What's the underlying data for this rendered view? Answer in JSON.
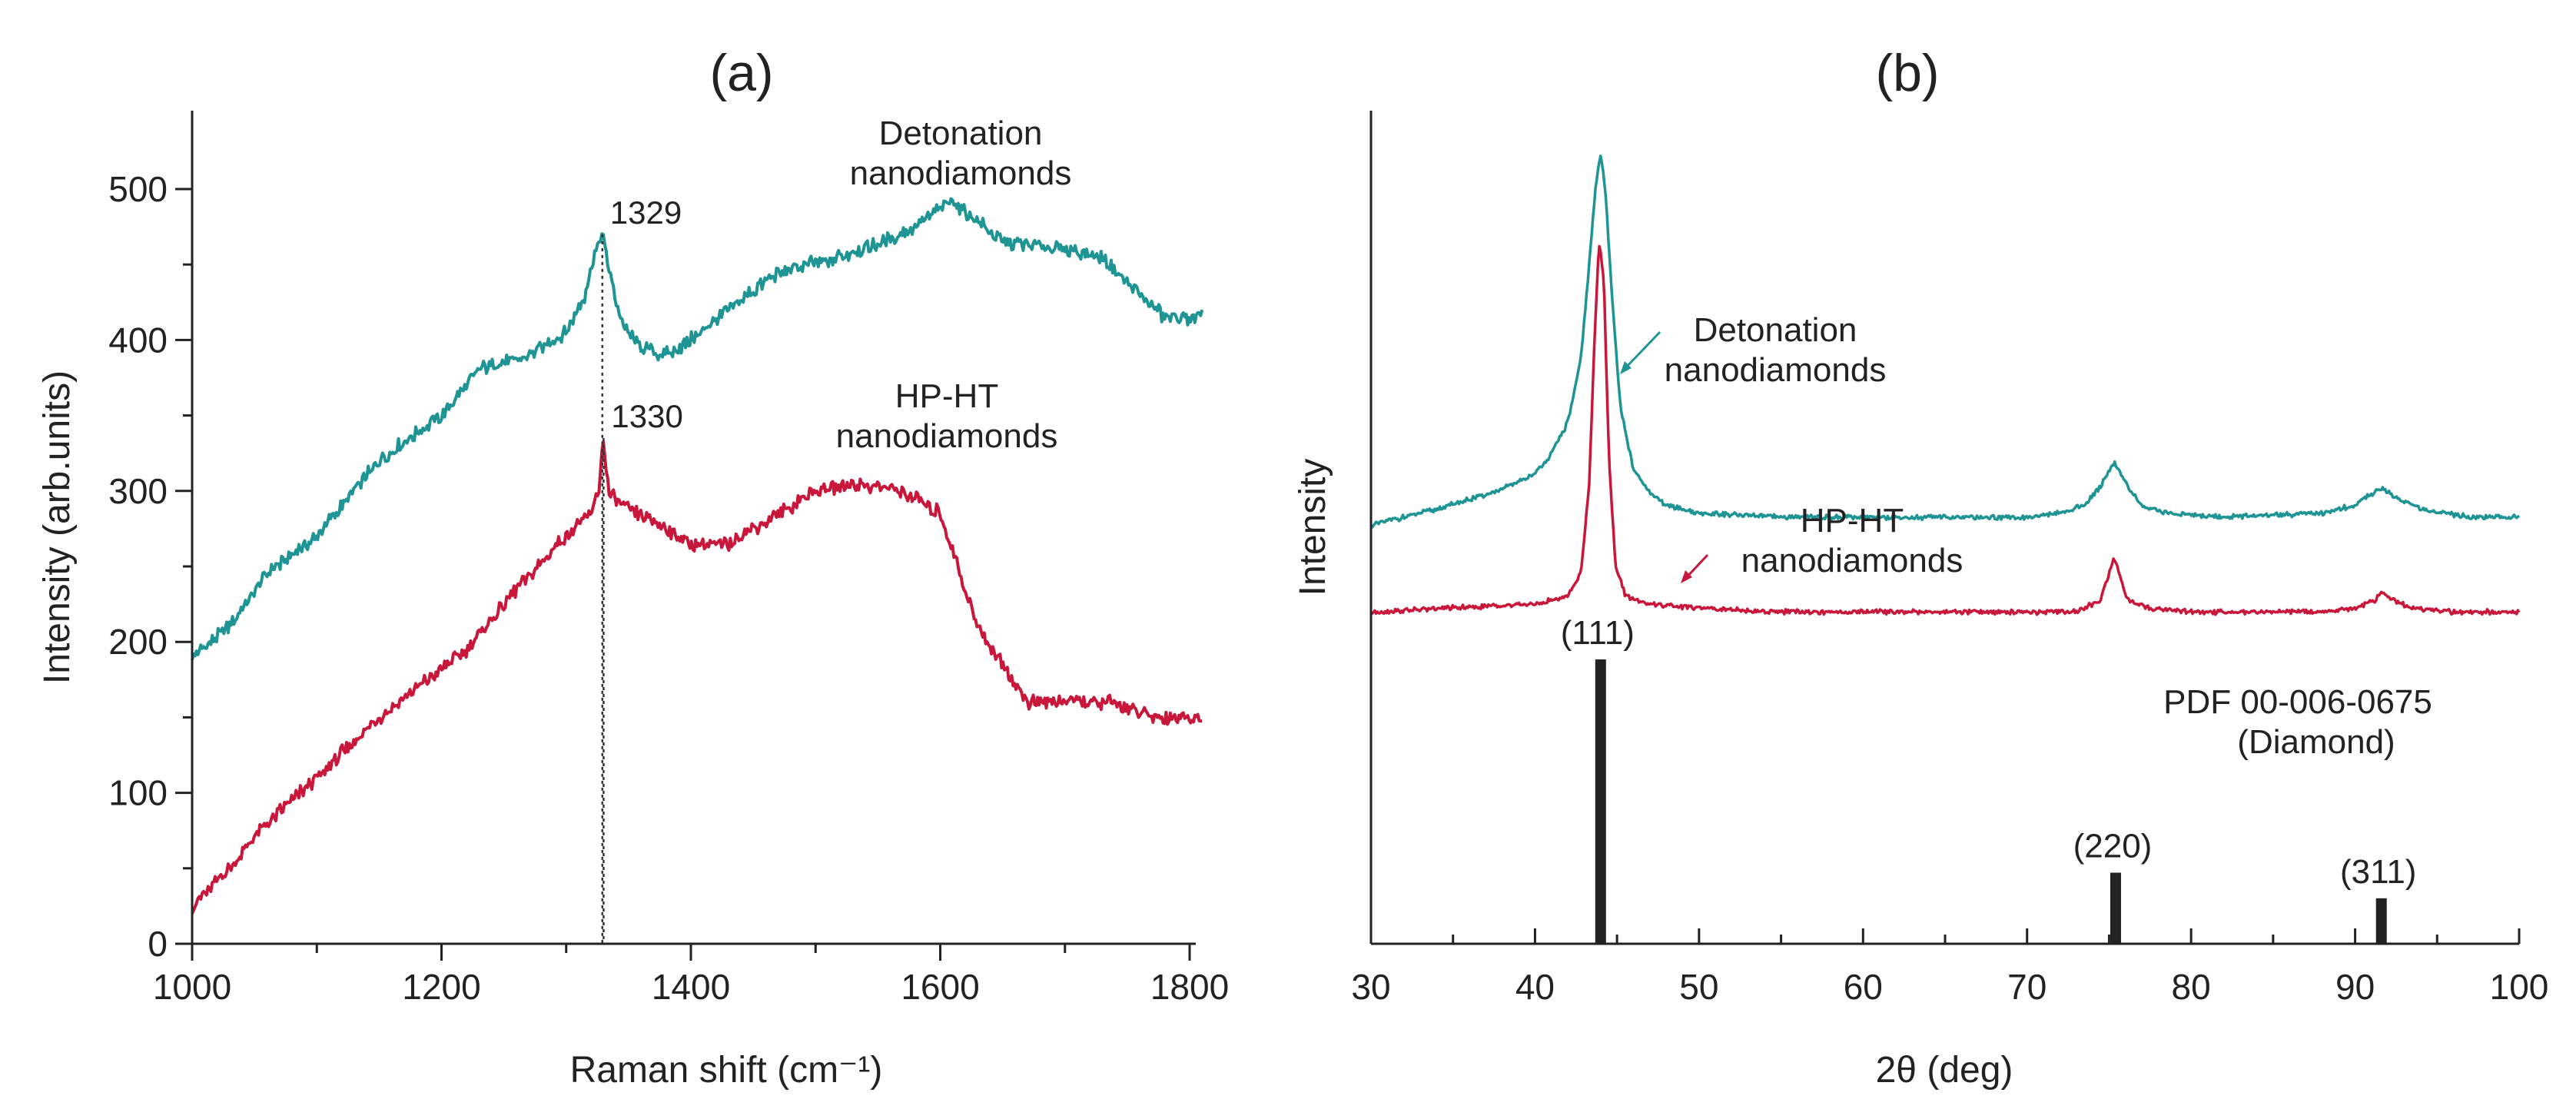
{
  "chart_data": [
    {
      "panel_id": "a",
      "type": "line",
      "title": "(a)",
      "xlabel": "Raman shift (cm⁻¹)",
      "ylabel": "Intensity (arb.units)",
      "xlim": [
        1000,
        1810
      ],
      "ylim": [
        0,
        550
      ],
      "x_ticks": [
        1000,
        1200,
        1400,
        1600,
        1800
      ],
      "y_ticks": [
        0,
        100,
        200,
        300,
        400,
        500
      ],
      "grid": false,
      "series": [
        {
          "name": "Detonation nanodiamonds",
          "label_lines": [
            "Detonation",
            "nanodiamonds"
          ],
          "color": "#1e9494",
          "peak_label": "1329",
          "peak_x": 1329,
          "x": [
            1000,
            1030,
            1060,
            1100,
            1150,
            1200,
            1230,
            1270,
            1300,
            1315,
            1322,
            1329,
            1336,
            1345,
            1360,
            1380,
            1400,
            1430,
            1470,
            1520,
            1570,
            1610,
            1650,
            1700,
            1730,
            1760,
            1780,
            1810
          ],
          "values": [
            190,
            210,
            245,
            270,
            320,
            350,
            380,
            390,
            405,
            430,
            455,
            470,
            440,
            410,
            395,
            390,
            400,
            420,
            445,
            455,
            470,
            492,
            465,
            460,
            455,
            430,
            415,
            415
          ]
        },
        {
          "name": "HP-HT nanodiamonds",
          "label_lines": [
            "HP-HT",
            "nanodiamonds"
          ],
          "color": "#c8173a",
          "peak_label": "1330",
          "peak_x": 1330,
          "x": [
            1000,
            1030,
            1060,
            1100,
            1150,
            1180,
            1220,
            1260,
            1300,
            1320,
            1326,
            1330,
            1334,
            1345,
            1370,
            1400,
            1430,
            1470,
            1500,
            1530,
            1570,
            1600,
            1630,
            1670,
            1700,
            1740,
            1770,
            1810
          ],
          "values": [
            25,
            50,
            80,
            110,
            150,
            170,
            195,
            235,
            270,
            285,
            300,
            335,
            300,
            290,
            280,
            265,
            265,
            285,
            300,
            305,
            300,
            285,
            210,
            160,
            160,
            160,
            150,
            150
          ]
        }
      ]
    },
    {
      "panel_id": "b",
      "type": "line",
      "title": "(b)",
      "xlabel": "2θ (deg)",
      "ylabel": "Intensity",
      "xlim": [
        30,
        100
      ],
      "ylim": [
        0,
        100
      ],
      "x_ticks": [
        30,
        40,
        50,
        60,
        70,
        80,
        90,
        100
      ],
      "grid": false,
      "series": [
        {
          "name": "Detonation nanodiamonds",
          "label_lines": [
            "Detonation",
            "nanodiamonds"
          ],
          "color": "#1e9494",
          "x": [
            30,
            34,
            38,
            40,
            41,
            42,
            42.8,
            43.3,
            43.7,
            44.0,
            44.3,
            44.7,
            45.2,
            46,
            47,
            48,
            50,
            55,
            60,
            65,
            70,
            72,
            73.5,
            74.5,
            75.3,
            76.1,
            77,
            78.5,
            82,
            88,
            90,
            91,
            91.7,
            92.5,
            94,
            97,
            100
          ],
          "values": [
            53,
            55,
            57.5,
            59.5,
            62,
            66,
            74,
            86,
            96,
            100,
            95,
            82,
            68,
            60,
            57,
            55.5,
            54.5,
            54,
            54,
            54,
            54,
            54.5,
            55.5,
            58,
            61,
            58,
            55.5,
            54.5,
            54,
            54.5,
            55.5,
            57,
            57.5,
            56.5,
            55,
            54,
            54
          ]
        },
        {
          "name": "HP-HT nanodiamonds",
          "label_lines": [
            "HP-HT",
            "nanodiamonds"
          ],
          "color": "#c8173a",
          "x": [
            30,
            35,
            40,
            42,
            42.8,
            43.3,
            43.6,
            43.9,
            44.2,
            44.5,
            44.9,
            45.5,
            47,
            50,
            55,
            60,
            65,
            70,
            73,
            74.5,
            75.3,
            76.1,
            77.5,
            80,
            88,
            90,
            91.2,
            91.7,
            92.3,
            93.5,
            96,
            100
          ],
          "values": [
            42,
            42.5,
            43,
            44,
            47,
            58,
            75,
            89,
            84,
            62,
            48,
            44,
            43,
            42.5,
            42,
            42,
            42,
            42,
            42,
            43.5,
            49,
            43.5,
            42.5,
            42,
            42,
            42.5,
            43.5,
            44.5,
            43.5,
            42.5,
            42,
            42
          ]
        }
      ],
      "reference": {
        "label_lines": [
          "PDF 00-006-0675",
          "(Diamond)"
        ],
        "color": "#222222",
        "bars": [
          {
            "x": 44.0,
            "value": 100,
            "label": "(111)"
          },
          {
            "x": 75.4,
            "value": 25,
            "label": "(220)"
          },
          {
            "x": 91.6,
            "value": 16,
            "label": "(311)"
          }
        ]
      }
    }
  ]
}
